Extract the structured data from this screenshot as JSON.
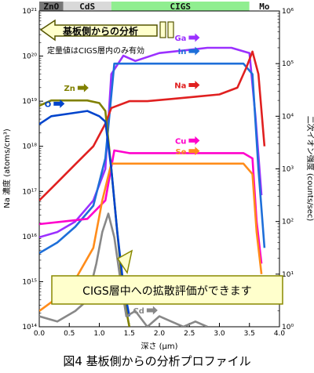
{
  "chart_data": {
    "type": "line",
    "title": "",
    "xlabel": "深さ (μm)",
    "ylabel_left": "Na 濃度 (atoms/cm³)",
    "ylabel_right": "二次イオン強度 (counts/sec)",
    "xlim": [
      0.0,
      4.0
    ],
    "x_ticks": [
      "0.0",
      "0.5",
      "1.0",
      "1.5",
      "2.0",
      "2.5",
      "3.0",
      "3.5",
      "4.0"
    ],
    "ylim_left_exp": [
      14,
      21
    ],
    "ylim_right_exp": [
      0,
      6
    ],
    "y_left_scale": "log",
    "y_right_scale": "log",
    "y_left_ticks": [
      "10¹⁴",
      "10¹⁵",
      "10¹⁶",
      "10¹⁷",
      "10¹⁸",
      "10¹⁹",
      "10²⁰",
      "10²¹"
    ],
    "y_right_ticks": [
      "10⁰",
      "10¹",
      "10²",
      "10³",
      "10⁴",
      "10⁵",
      "10⁶"
    ],
    "layers": [
      {
        "label": "ZnO",
        "x_start": 0.0,
        "x_end": 0.4,
        "color": "#777777"
      },
      {
        "label": "CdS",
        "x_start": 0.4,
        "x_end": 1.2,
        "color": "#d9d9d9"
      },
      {
        "label": "CIGS",
        "x_start": 1.2,
        "x_end": 3.5,
        "color": "#90ee90"
      },
      {
        "label": "Mo",
        "x_start": 3.5,
        "x_end": 4.0,
        "color": "#ffffff"
      }
    ],
    "series": [
      {
        "name": "Ga",
        "color": "#9b30ff",
        "axis": "right",
        "x": [
          0.0,
          0.3,
          0.6,
          0.9,
          1.1,
          1.2,
          1.4,
          1.6,
          2.0,
          2.4,
          2.8,
          3.2,
          3.5,
          3.6,
          3.7
        ],
        "y": [
          1.7,
          1.8,
          2.0,
          2.4,
          3.0,
          4.8,
          5.15,
          5.05,
          5.2,
          5.25,
          5.3,
          5.3,
          5.2,
          4.0,
          2.5
        ]
      },
      {
        "name": "In",
        "color": "#1e6fd9",
        "axis": "right",
        "x": [
          0.0,
          0.3,
          0.6,
          0.9,
          1.1,
          1.25,
          1.5,
          2.0,
          2.5,
          3.0,
          3.4,
          3.55,
          3.65,
          3.75
        ],
        "y": [
          1.4,
          1.6,
          1.9,
          2.3,
          3.2,
          5.0,
          5.0,
          5.0,
          5.0,
          5.0,
          5.0,
          4.8,
          3.0,
          1.5
        ]
      },
      {
        "name": "Na",
        "color": "#e02020",
        "axis": "left",
        "x": [
          0.0,
          0.3,
          0.6,
          0.9,
          1.1,
          1.2,
          1.5,
          1.8,
          2.2,
          2.6,
          3.0,
          3.3,
          3.45,
          3.55,
          3.65,
          3.75
        ],
        "y": [
          16.8,
          17.2,
          17.6,
          18.0,
          18.5,
          18.85,
          19.0,
          19.0,
          19.05,
          19.1,
          19.15,
          19.3,
          19.75,
          20.1,
          19.6,
          18.0
        ]
      },
      {
        "name": "Cu",
        "color": "#ff00cc",
        "axis": "right",
        "x": [
          0.0,
          0.4,
          0.8,
          1.1,
          1.25,
          1.5,
          2.0,
          2.5,
          3.0,
          3.4,
          3.55,
          3.62,
          3.7
        ],
        "y": [
          1.95,
          2.0,
          2.05,
          2.4,
          3.35,
          3.3,
          3.3,
          3.3,
          3.3,
          3.3,
          3.2,
          2.0,
          1.2
        ]
      },
      {
        "name": "Se",
        "color": "#ff8c1a",
        "axis": "right",
        "x": [
          0.0,
          0.3,
          0.6,
          0.9,
          1.05,
          1.2,
          1.5,
          2.0,
          2.5,
          3.0,
          3.4,
          3.55,
          3.62,
          3.7
        ],
        "y": [
          0.3,
          0.55,
          0.9,
          1.5,
          2.4,
          3.1,
          3.1,
          3.1,
          3.1,
          3.1,
          3.1,
          2.9,
          1.8,
          1.0
        ]
      },
      {
        "name": "Zn",
        "color": "#808000",
        "axis": "right",
        "x": [
          0.0,
          0.2,
          0.5,
          0.8,
          1.0,
          1.1,
          1.2,
          1.3,
          1.4,
          1.5
        ],
        "y": [
          4.2,
          4.3,
          4.3,
          4.3,
          4.25,
          4.1,
          3.0,
          1.8,
          0.6,
          0.0
        ]
      },
      {
        "name": "O",
        "color": "#0044cc",
        "axis": "right",
        "x": [
          0.0,
          0.2,
          0.5,
          0.8,
          1.0,
          1.1,
          1.2,
          1.3,
          1.4,
          1.5
        ],
        "y": [
          3.85,
          4.0,
          4.05,
          4.1,
          4.0,
          3.9,
          3.0,
          1.8,
          0.8,
          0.2
        ]
      },
      {
        "name": "Cd",
        "color": "#888888",
        "axis": "right",
        "x": [
          0.0,
          0.3,
          0.6,
          0.8,
          0.95,
          1.05,
          1.15,
          1.25,
          1.35,
          1.45,
          1.6,
          1.8,
          2.0,
          2.2,
          2.4,
          2.6,
          2.8
        ],
        "y": [
          0.2,
          0.1,
          0.3,
          0.5,
          1.2,
          1.8,
          2.15,
          1.7,
          0.9,
          0.2,
          0.3,
          0.0,
          0.2,
          0.1,
          0.0,
          0.1,
          0.0
        ]
      }
    ],
    "arrows": [
      {
        "label": "Ga",
        "x": 2.45,
        "series": "Ga"
      },
      {
        "label": "In",
        "x": 2.45,
        "series": "In"
      },
      {
        "label": "Na",
        "x": 2.45,
        "series": "Na"
      },
      {
        "label": "Cu",
        "x": 2.45,
        "series": "Cu"
      },
      {
        "label": "Se",
        "x": 2.45,
        "series": "Se"
      },
      {
        "label": "Zn",
        "x": 0.6,
        "series": "Zn"
      },
      {
        "label": "O",
        "x": 0.2,
        "series": "O"
      },
      {
        "label": "Cd",
        "x": 1.75,
        "series": "Cd"
      }
    ],
    "annotations": {
      "top_left_box": "基板側からの分析",
      "quant_note": "定量値はCIGS層内のみ有効",
      "bottom_box": "CIGS層中への拡散評価ができます",
      "top_left_exp_left": "21",
      "top_right_exp_right": "6"
    }
  },
  "caption": "図4 基板側からの分析プロファイル",
  "colors": {
    "panel_bg": "#ffffff",
    "box_fill": "#ffffcc",
    "box_stroke": "#888800"
  }
}
